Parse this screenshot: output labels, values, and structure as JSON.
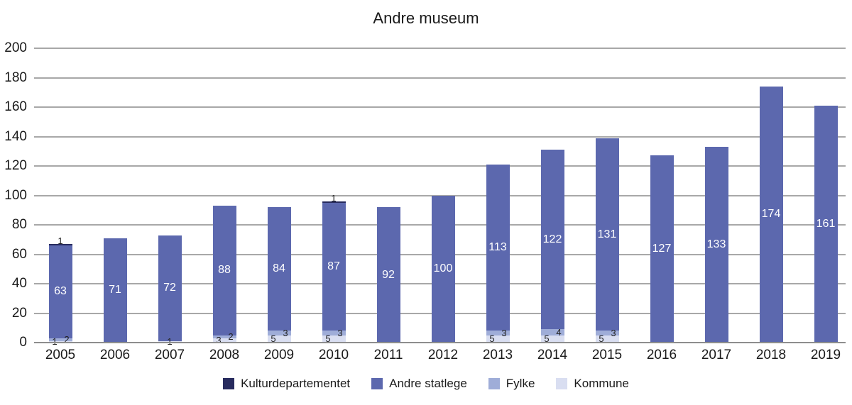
{
  "chart_data": {
    "type": "bar",
    "stacked": true,
    "title": "Andre museum",
    "categories": [
      "2005",
      "2006",
      "2007",
      "2008",
      "2009",
      "2010",
      "2011",
      "2012",
      "2013",
      "2014",
      "2015",
      "2016",
      "2017",
      "2018",
      "2019"
    ],
    "series": [
      {
        "name": "Kulturdepartementet",
        "color": "#272b5e",
        "values": [
          1,
          0,
          0,
          0,
          0,
          1,
          0,
          0,
          0,
          0,
          0,
          0,
          0,
          0,
          0
        ]
      },
      {
        "name": "Andre statlege",
        "color": "#5c68ae",
        "values": [
          63,
          71,
          72,
          88,
          84,
          87,
          92,
          100,
          113,
          122,
          131,
          127,
          133,
          174,
          161
        ]
      },
      {
        "name": "Fylke",
        "color": "#9fadd8",
        "values": [
          2,
          0,
          0,
          2,
          3,
          3,
          0,
          0,
          3,
          4,
          3,
          0,
          0,
          0,
          0
        ]
      },
      {
        "name": "Kommune",
        "color": "#d9def1",
        "values": [
          1,
          0,
          1,
          3,
          5,
          5,
          0,
          0,
          5,
          5,
          5,
          0,
          0,
          0,
          0
        ]
      }
    ],
    "stack_order_bottom_to_top": [
      "Kommune",
      "Fylke",
      "Andre statlege",
      "Kulturdepartementet"
    ],
    "ylim": [
      0,
      200
    ],
    "ytick_step": 20,
    "yticks": [
      0,
      20,
      40,
      60,
      80,
      100,
      120,
      140,
      160,
      180,
      200
    ],
    "grid": "horizontal",
    "legend_position": "bottom"
  },
  "styles": {
    "grid_color": "#a8a8a8",
    "axis_color": "#8d8d8d",
    "text_color": "#1a1a1a",
    "bar_value_label_color": "#ffffff",
    "small_label_color": "#222222",
    "background": "#ffffff"
  }
}
